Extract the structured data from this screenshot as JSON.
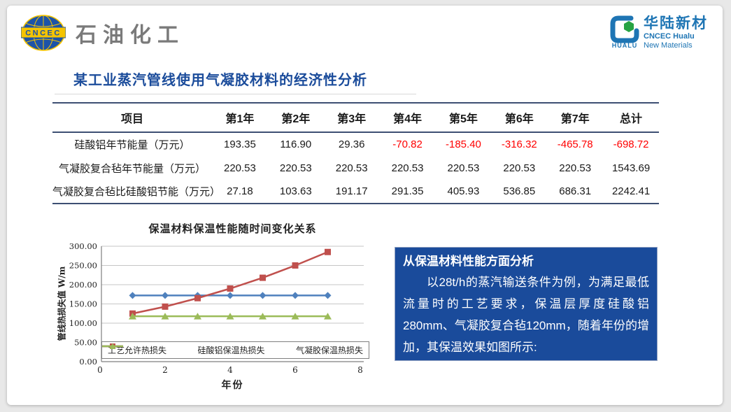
{
  "colors": {
    "title_blue": "#1B4C9B",
    "line_navy": "#3D4F73",
    "neg_red": "#FF0000",
    "box_blue": "#1A4B9B",
    "logo_gray": "#7A7A7A",
    "hualu_blue": "#1E75B4",
    "hualu_green": "#27A343",
    "grid_gray": "#C6C6C6",
    "axis_gray": "#7F7F7F"
  },
  "header": {
    "left_logo": {
      "acronym": "CNCEC",
      "name": "石油化工"
    },
    "right_logo": {
      "brand_cn": "华陆新材",
      "brand_en_1": "CNCEC Hualu",
      "brand_en_2": "New Materials",
      "mark_word": "HUALU"
    }
  },
  "title": "某工业蒸汽管线使用气凝胶材料的经济性分析",
  "table": {
    "columns": [
      "项目",
      "第1年",
      "第2年",
      "第3年",
      "第4年",
      "第5年",
      "第6年",
      "第7年",
      "总计"
    ],
    "rows": [
      {
        "label": "硅酸铝年节能量（万元）",
        "values": [
          "193.35",
          "116.90",
          "29.36",
          "-70.82",
          "-185.40",
          "-316.32",
          "-465.78",
          "-698.72"
        ]
      },
      {
        "label": "气凝胶复合毡年节能量（万元）",
        "values": [
          "220.53",
          "220.53",
          "220.53",
          "220.53",
          "220.53",
          "220.53",
          "220.53",
          "1543.69"
        ]
      },
      {
        "label": "气凝胶复合毡比硅酸铝节能（万元）",
        "values": [
          "27.18",
          "103.63",
          "191.17",
          "291.35",
          "405.93",
          "536.85",
          "686.31",
          "2242.41"
        ]
      }
    ]
  },
  "chart_data": {
    "type": "line",
    "title": "保温材料保温性能随时间变化关系",
    "xlabel": "年份",
    "ylabel": "管线热损失值 W/m",
    "x": [
      1,
      2,
      3,
      4,
      5,
      6,
      7
    ],
    "xlim": [
      0,
      8
    ],
    "x_ticks": [
      0,
      2,
      4,
      6,
      8
    ],
    "ylim": [
      0,
      300
    ],
    "y_ticks": [
      "300.00",
      "250.00",
      "200.00",
      "150.00",
      "100.00",
      "50.00",
      "0.00"
    ],
    "grid": true,
    "legend_position": "bottom-inside",
    "series": [
      {
        "name": "工艺允许热损失",
        "color": "#4F81BD",
        "marker": "diamond",
        "values": [
          172,
          172,
          172,
          172,
          172,
          172,
          172
        ]
      },
      {
        "name": "硅酸铝保温热损失",
        "color": "#C0504D",
        "marker": "square",
        "values": [
          125,
          143,
          165,
          190,
          218,
          250,
          285
        ]
      },
      {
        "name": "气凝胶保温热损失",
        "color": "#9BBB59",
        "marker": "triangle",
        "values": [
          118,
          118,
          118,
          118,
          118,
          118,
          118
        ]
      }
    ]
  },
  "info_box": {
    "heading": "从保温材料性能方面分析",
    "body": "以28t/h的蒸汽输送条件为例，为满足最低流量时的工艺要求，保温层厚度硅酸铝280mm、气凝胶复合毡120mm，随着年份的增加，其保温效果如图所示:"
  }
}
